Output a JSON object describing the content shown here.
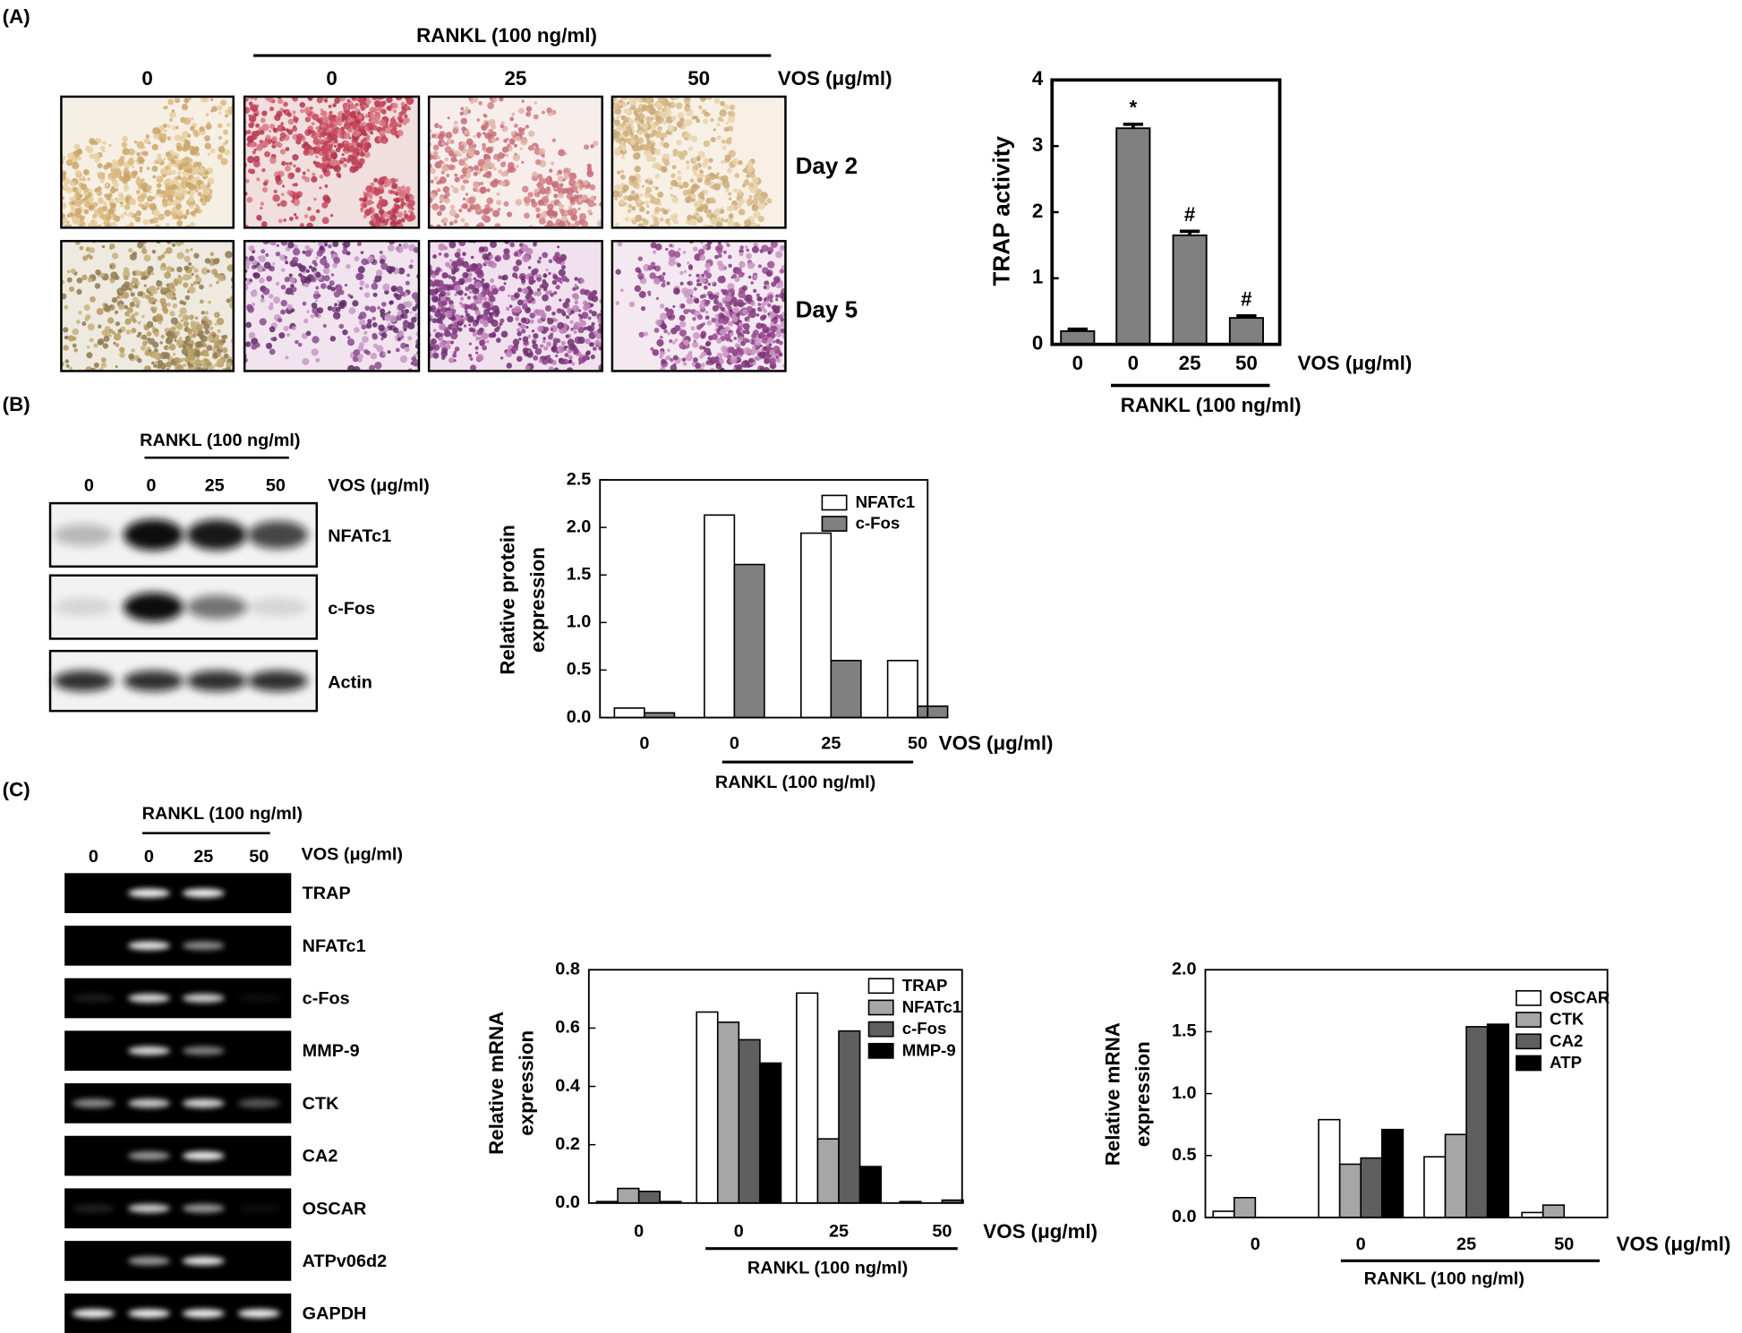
{
  "panel_labels": [
    "(A)",
    "(B)",
    "(C)"
  ],
  "micrographs": {
    "treatment": "RANKL (100 ng/ml)",
    "doses": [
      "0",
      "0",
      "25",
      "50"
    ],
    "dose_unit": "VOS (μg/ml)",
    "rows": [
      "Day 2",
      "Day 5"
    ]
  },
  "western_blot": {
    "treatment": "RANKL (100 ng/ml)",
    "doses": [
      "0",
      "0",
      "25",
      "50"
    ],
    "dose_unit": "VOS (μg/ml)",
    "proteins": [
      "NFATc1",
      "c-Fos",
      "Actin"
    ]
  },
  "pcr_gel": {
    "treatment": "RANKL (100 ng/ml)",
    "doses": [
      "0",
      "0",
      "25",
      "50"
    ],
    "dose_unit": "VOS (μg/ml)",
    "genes": [
      "TRAP",
      "NFATc1",
      "c-Fos",
      "MMP-9",
      "CTK",
      "CA2",
      "OSCAR",
      "ATPv06d2",
      "GAPDH"
    ]
  },
  "chart_data": [
    {
      "type": "bar",
      "ylabel": "TRAP activity",
      "xlabel": "VOS (μg/ml)",
      "group_label": "RANKL (100 ng/ml)",
      "categories": [
        "0",
        "0",
        "25",
        "50"
      ],
      "values": [
        0.2,
        3.27,
        1.65,
        0.4
      ],
      "errors": [
        0.03,
        0.06,
        0.06,
        0.03
      ],
      "color": "#808080",
      "annotations": [
        {
          "index": 1,
          "text": "*"
        },
        {
          "index": 2,
          "text": "#"
        },
        {
          "index": 3,
          "text": "#"
        }
      ],
      "ylim": [
        0,
        4
      ],
      "yticks": [
        0,
        1,
        2,
        3,
        4
      ]
    },
    {
      "type": "grouped_bar",
      "ylabel": [
        "Relative protein",
        "expression"
      ],
      "xlabel": "VOS (μg/ml)",
      "group_label": "RANKL (100 ng/ml)",
      "categories": [
        "0",
        "0",
        "25",
        "50"
      ],
      "series": [
        {
          "name": "NFATc1",
          "color": "#ffffff",
          "values": [
            0.1,
            2.13,
            1.94,
            0.6
          ]
        },
        {
          "name": "c-Fos",
          "color": "#808080",
          "values": [
            0.05,
            1.61,
            0.6,
            0.12
          ]
        }
      ],
      "ylim": [
        0,
        2.5
      ],
      "yticks": [
        {
          "value": 0,
          "label": "0.0"
        },
        {
          "value": 0.5,
          "label": "0.5"
        },
        {
          "value": 1,
          "label": "1.0"
        },
        {
          "value": 1.5,
          "label": "1.5"
        },
        {
          "value": 2,
          "label": "2.0"
        },
        {
          "value": 2.5,
          "label": "2.5"
        }
      ],
      "legend": "upper right"
    },
    {
      "type": "grouped_bar",
      "ylabel": [
        "Relative mRNA",
        "expression"
      ],
      "xlabel": "VOS (μg/ml)",
      "group_label": "RANKL (100 ng/ml)",
      "categories": [
        "0",
        "0",
        "25",
        "50"
      ],
      "series": [
        {
          "name": "TRAP",
          "color": "#ffffff",
          "values": [
            0.005,
            0.655,
            0.72,
            0.005
          ]
        },
        {
          "name": "NFATc1",
          "color": "#a6a6a6",
          "values": [
            0.05,
            0.62,
            0.22,
            0
          ]
        },
        {
          "name": "c-Fos",
          "color": "#5f5f5f",
          "values": [
            0.04,
            0.56,
            0.59,
            0.01
          ]
        },
        {
          "name": "MMP-9",
          "color": "#000000",
          "values": [
            0.005,
            0.48,
            0.125,
            0
          ]
        }
      ],
      "ylim": [
        0,
        0.8
      ],
      "yticks": [
        {
          "value": 0,
          "label": "0.0"
        },
        0.2,
        0.4,
        0.6,
        0.8
      ],
      "legend": "upper right"
    },
    {
      "type": "grouped_bar",
      "ylabel": [
        "Relative mRNA",
        "expression"
      ],
      "xlabel": "VOS (μg/ml)",
      "group_label": "RANKL (100 ng/ml)",
      "categories": [
        "0",
        "0",
        "25",
        "50"
      ],
      "series": [
        {
          "name": "OSCAR",
          "color": "#ffffff",
          "values": [
            0.05,
            0.79,
            0.49,
            0.04
          ]
        },
        {
          "name": "CTK",
          "color": "#a6a6a6",
          "values": [
            0.16,
            0.43,
            0.67,
            0.1
          ]
        },
        {
          "name": "CA2",
          "color": "#5f5f5f",
          "values": [
            0,
            0.48,
            1.54,
            0
          ]
        },
        {
          "name": "ATP",
          "color": "#000000",
          "values": [
            0,
            0.71,
            1.56,
            0
          ]
        }
      ],
      "ylim": [
        0,
        2
      ],
      "yticks": [
        {
          "value": 0,
          "label": "0.0"
        },
        {
          "value": 0.5,
          "label": "0.5"
        },
        {
          "value": 1,
          "label": "1.0"
        },
        {
          "value": 1.5,
          "label": "1.5"
        },
        {
          "value": 2,
          "label": "2.0"
        }
      ],
      "legend": "upper right"
    }
  ]
}
